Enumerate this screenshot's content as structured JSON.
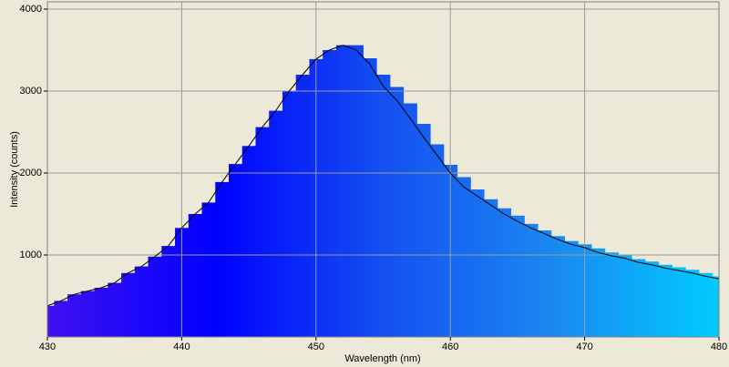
{
  "chart_data": {
    "type": "spectrum",
    "xlabel": "Wavelength (nm)",
    "ylabel": "Intensity (counts)",
    "x": [
      430,
      431,
      432,
      433,
      434,
      435,
      436,
      437,
      438,
      439,
      440,
      441,
      442,
      443,
      444,
      445,
      446,
      447,
      448,
      449,
      450,
      451,
      452,
      453,
      454,
      455,
      456,
      457,
      458,
      459,
      460,
      461,
      462,
      463,
      464,
      465,
      466,
      467,
      468,
      469,
      470,
      471,
      472,
      473,
      474,
      475,
      476,
      477,
      478,
      479,
      480
    ],
    "series": [
      {
        "kind": "bar",
        "color": [
          "#4010f0",
          "#0000ff",
          "#1450f0",
          "#1a88f0",
          "#00ccff"
        ],
        "values": [
          380,
          440,
          520,
          560,
          600,
          660,
          780,
          860,
          980,
          1110,
          1330,
          1500,
          1640,
          1890,
          2110,
          2330,
          2560,
          2760,
          3000,
          3200,
          3390,
          3500,
          3560,
          3560,
          3400,
          3200,
          3050,
          2850,
          2600,
          2350,
          2100,
          1950,
          1800,
          1680,
          1570,
          1480,
          1380,
          1300,
          1230,
          1170,
          1130,
          1080,
          1030,
          1000,
          950,
          920,
          880,
          850,
          820,
          780,
          740
        ]
      },
      {
        "kind": "line",
        "color": "#000000",
        "values": [
          380,
          440,
          520,
          560,
          600,
          660,
          780,
          860,
          980,
          1110,
          1330,
          1500,
          1640,
          1890,
          2110,
          2330,
          2560,
          2760,
          3000,
          3200,
          3390,
          3500,
          3560,
          3500,
          3330,
          3060,
          2890,
          2670,
          2440,
          2220,
          2000,
          1830,
          1720,
          1610,
          1500,
          1410,
          1330,
          1260,
          1190,
          1130,
          1090,
          1030,
          990,
          960,
          910,
          880,
          840,
          810,
          780,
          740,
          710
        ]
      }
    ],
    "xlim": [
      430,
      480
    ],
    "xticks": [
      430,
      440,
      450,
      460,
      470,
      480
    ],
    "ylim": [
      0,
      4000
    ],
    "yticks": [
      1000,
      2000,
      3000,
      4000
    ],
    "grid": true
  }
}
